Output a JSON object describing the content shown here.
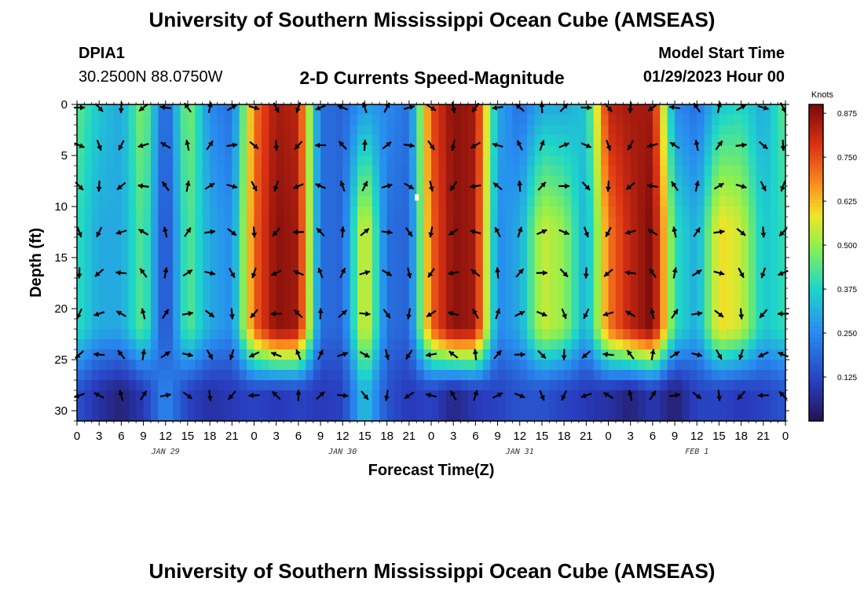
{
  "header": {
    "title": "University of Southern Mississippi Ocean Cube (AMSEAS)",
    "station": "DPIA1",
    "coords": "30.2500N  88.0750W",
    "plot_title": "2-D Currents Speed-Magnitude",
    "model_start_label": "Model Start Time",
    "model_start_value": "01/29/2023 Hour 00"
  },
  "footer": {
    "title": "University of Southern Mississippi Ocean Cube (AMSEAS)"
  },
  "chart_data": {
    "type": "heatmap",
    "title": "2-D Currents Speed-Magnitude",
    "xlabel": "Forecast Time(Z)",
    "ylabel": "Depth (ft)",
    "x_range_hours": [
      0,
      96
    ],
    "y_range_ft": [
      0,
      31
    ],
    "y_inverted": true,
    "x_tick_labels": [
      "0",
      "3",
      "6",
      "9",
      "12",
      "15",
      "18",
      "21",
      "0",
      "3",
      "6",
      "9",
      "12",
      "15",
      "18",
      "21",
      "0",
      "3",
      "6",
      "9",
      "12",
      "15",
      "18",
      "21",
      "0",
      "3",
      "6",
      "9",
      "12",
      "15",
      "18",
      "21",
      "0"
    ],
    "date_labels": [
      {
        "label": "JAN 29",
        "hour": 12
      },
      {
        "label": "JAN 30",
        "hour": 36
      },
      {
        "label": "JAN 31",
        "hour": 60
      },
      {
        "label": "FEB 1",
        "hour": 84
      }
    ],
    "y_ticks": [
      0,
      5,
      10,
      15,
      20,
      25,
      30
    ],
    "colorbar": {
      "unit": "Knots",
      "min": 0.0,
      "max": 0.9,
      "tick_values": [
        0.125,
        0.25,
        0.375,
        0.5,
        0.625,
        0.75,
        0.875
      ],
      "tick_labels": [
        "0.125",
        "0.250",
        "0.375",
        "0.500",
        "0.625",
        "0.750",
        "0.875"
      ]
    },
    "depth_levels_ft": [
      0,
      4,
      8,
      12.5,
      16.5,
      20.5,
      24.5,
      28.5
    ],
    "arrow_hours": [
      0,
      3,
      6,
      9,
      12,
      15,
      18,
      21,
      24,
      27,
      30,
      33,
      36,
      39,
      42,
      45,
      48,
      51,
      54,
      57,
      60,
      63,
      66,
      69,
      72,
      75,
      78,
      81,
      84,
      87,
      90,
      93,
      96
    ],
    "speed_profile_surface_knots": [
      0.45,
      0.35,
      0.3,
      0.5,
      0.15,
      0.5,
      0.25,
      0.2,
      0.7,
      0.85,
      0.82,
      0.2,
      0.18,
      0.28,
      0.25,
      0.2,
      0.75,
      0.88,
      0.85,
      0.3,
      0.2,
      0.3,
      0.3,
      0.35,
      0.82,
      0.85,
      0.85,
      0.25,
      0.2,
      0.35,
      0.38,
      0.3,
      0.45
    ],
    "speed_profile_mid_knots": [
      0.4,
      0.3,
      0.3,
      0.45,
      0.12,
      0.45,
      0.3,
      0.25,
      0.72,
      0.88,
      0.85,
      0.2,
      0.18,
      0.6,
      0.2,
      0.18,
      0.72,
      0.88,
      0.85,
      0.25,
      0.3,
      0.55,
      0.5,
      0.3,
      0.7,
      0.82,
      0.9,
      0.4,
      0.3,
      0.6,
      0.55,
      0.35,
      0.4
    ],
    "speed_profile_deep_knots": [
      0.15,
      0.08,
      0.04,
      0.1,
      0.25,
      0.12,
      0.08,
      0.1,
      0.12,
      0.1,
      0.12,
      0.1,
      0.12,
      0.35,
      0.15,
      0.1,
      0.12,
      0.05,
      0.1,
      0.12,
      0.15,
      0.15,
      0.12,
      0.1,
      0.08,
      0.04,
      0.1,
      0.03,
      0.12,
      0.12,
      0.1,
      0.12,
      0.15
    ]
  }
}
